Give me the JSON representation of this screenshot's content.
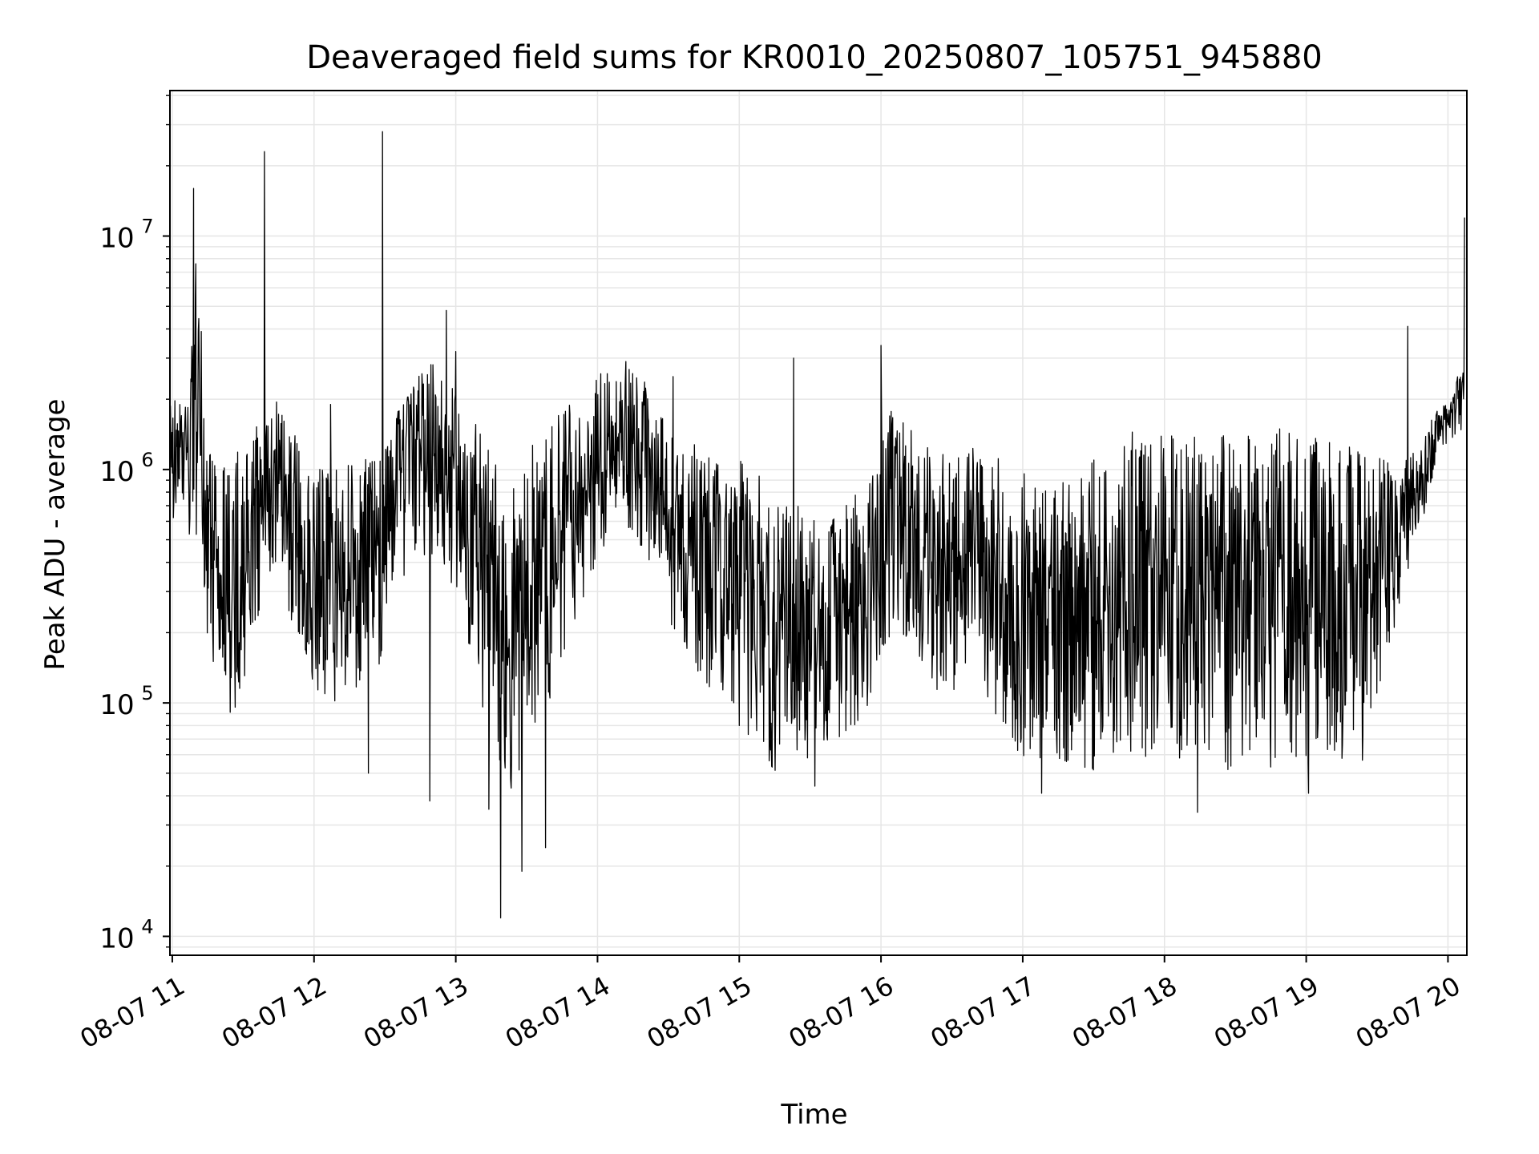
{
  "chart_data": {
    "type": "line",
    "title": "Deaveraged field sums for KR0010_20250807_105751_945880",
    "xlabel": "Time",
    "ylabel": "Peak ADU - average",
    "x_tick_labels": [
      "08-07 11",
      "08-07 12",
      "08-07 13",
      "08-07 14",
      "08-07 15",
      "08-07 16",
      "08-07 17",
      "08-07 18",
      "08-07 19",
      "08-07 20"
    ],
    "x_ticks": [
      "2025-08-07T11:00",
      "2025-08-07T12:00",
      "2025-08-07T13:00",
      "2025-08-07T14:00",
      "2025-08-07T15:00",
      "2025-08-07T16:00",
      "2025-08-07T17:00",
      "2025-08-07T18:00",
      "2025-08-07T19:00",
      "2025-08-07T20:00"
    ],
    "xlim": [
      "2025-08-07T10:59",
      "2025-08-07T20:08"
    ],
    "y_ticks": [
      {
        "base": "10",
        "exp": "4",
        "value": 10000
      },
      {
        "base": "10",
        "exp": "5",
        "value": 100000
      },
      {
        "base": "10",
        "exp": "6",
        "value": 1000000
      },
      {
        "base": "10",
        "exp": "7",
        "value": 10000000
      }
    ],
    "yscale": "log",
    "ylim": [
      8300,
      42000000
    ],
    "grid": true,
    "line_color": "#000000",
    "grid_color": "#e6e6e6",
    "series": [
      {
        "x": [
          "2025-08-07T10:59",
          "2025-08-07T11:02",
          "2025-08-07T11:06",
          "2025-08-07T11:08",
          "2025-08-07T11:10",
          "2025-08-07T11:14",
          "2025-08-07T11:20",
          "2025-08-07T11:26",
          "2025-08-07T11:33",
          "2025-08-07T11:39",
          "2025-08-07T11:40",
          "2025-08-07T11:45",
          "2025-08-07T11:52",
          "2025-08-07T12:00",
          "2025-08-07T12:10",
          "2025-08-07T12:20",
          "2025-08-07T12:29",
          "2025-08-07T12:30",
          "2025-08-07T12:36",
          "2025-08-07T12:43",
          "2025-08-07T12:50",
          "2025-08-07T12:55",
          "2025-08-07T13:00",
          "2025-08-07T13:08",
          "2025-08-07T13:15",
          "2025-08-07T13:19",
          "2025-08-07T13:25",
          "2025-08-07T13:30",
          "2025-08-07T13:40",
          "2025-08-07T13:50",
          "2025-08-07T14:00",
          "2025-08-07T14:08",
          "2025-08-07T14:17",
          "2025-08-07T14:25",
          "2025-08-07T14:35",
          "2025-08-07T14:45",
          "2025-08-07T14:55",
          "2025-08-07T15:05",
          "2025-08-07T15:15",
          "2025-08-07T15:25",
          "2025-08-07T15:35",
          "2025-08-07T15:45",
          "2025-08-07T15:55",
          "2025-08-07T16:05",
          "2025-08-07T16:15",
          "2025-08-07T16:25",
          "2025-08-07T16:35",
          "2025-08-07T16:45",
          "2025-08-07T16:55",
          "2025-08-07T17:05",
          "2025-08-07T17:15",
          "2025-08-07T17:25",
          "2025-08-07T17:35",
          "2025-08-07T17:45",
          "2025-08-07T17:55",
          "2025-08-07T18:05",
          "2025-08-07T18:15",
          "2025-08-07T18:25",
          "2025-08-07T18:35",
          "2025-08-07T18:45",
          "2025-08-07T18:55",
          "2025-08-07T19:05",
          "2025-08-07T19:15",
          "2025-08-07T19:25",
          "2025-08-07T19:35",
          "2025-08-07T19:43",
          "2025-08-07T19:50",
          "2025-08-07T19:55",
          "2025-08-07T20:00",
          "2025-08-07T20:04",
          "2025-08-07T20:07"
        ],
        "y": [
          1500000,
          1200000,
          1400000,
          1700000,
          8900000,
          1800000,
          500000,
          420000,
          480000,
          700000,
          900000,
          1100000,
          600000,
          450000,
          350000,
          420000,
          500000,
          550000,
          700000,
          800000,
          1000000,
          900000,
          750000,
          500000,
          300000,
          200000,
          150000,
          250000,
          350000,
          500000,
          900000,
          1100000,
          1000000,
          700000,
          450000,
          400000,
          350000,
          300000,
          200000,
          180000,
          150000,
          180000,
          300000,
          600000,
          400000,
          350000,
          500000,
          450000,
          300000,
          200000,
          180000,
          150000,
          140000,
          130000,
          150000,
          120000,
          100000,
          110000,
          120000,
          130000,
          140000,
          150000,
          160000,
          180000,
          400000,
          700000,
          900000,
          1300000,
          1500000,
          1800000,
          1700000
        ],
        "low": [
          550000,
          600000,
          500000,
          400000,
          450000,
          160000,
          120000,
          80000,
          150000,
          250000,
          300000,
          350000,
          200000,
          110000,
          90000,
          120000,
          150000,
          200000,
          300000,
          400000,
          400000,
          300000,
          250000,
          150000,
          60000,
          35000,
          40000,
          60000,
          100000,
          200000,
          400000,
          600000,
          500000,
          350000,
          150000,
          120000,
          100000,
          60000,
          50000,
          55000,
          60000,
          60000,
          100000,
          200000,
          150000,
          100000,
          120000,
          100000,
          60000,
          50000,
          50000,
          50000,
          50000,
          55000,
          55000,
          50000,
          50000,
          50000,
          50000,
          48000,
          50000,
          50000,
          50000,
          55000,
          150000,
          350000,
          600000,
          1100000,
          1300000,
          1400000,
          1300000
        ],
        "high": [
          2200000,
          2100000,
          2000000,
          3000000,
          9000000,
          2300000,
          1000000,
          1200000,
          1500000,
          1600000,
          1800000,
          2000000,
          1400000,
          1100000,
          1000000,
          1100000,
          1300000,
          1500000,
          1900000,
          2400000,
          3000000,
          2500000,
          2300000,
          1700000,
          1200000,
          1000000,
          900000,
          1200000,
          1600000,
          2200000,
          2600000,
          2800000,
          2700000,
          2000000,
          1400000,
          1300000,
          1200000,
          1100000,
          800000,
          700000,
          600000,
          700000,
          1000000,
          1900000,
          1400000,
          1200000,
          1300000,
          1200000,
          1100000,
          1000000,
          900000,
          1000000,
          1300000,
          1500000,
          1500000,
          1400000,
          1500000,
          1500000,
          1500000,
          1500000,
          1500000,
          1500000,
          1500000,
          1400000,
          1200000,
          1100000,
          1400000,
          1800000,
          2000000,
          2600000,
          2600000
        ]
      }
    ],
    "spikes": [
      {
        "x": "2025-08-07T11:09",
        "y": 16000000
      },
      {
        "x": "2025-08-07T11:39",
        "y": 23000000
      },
      {
        "x": "2025-08-07T12:29",
        "y": 28000000
      },
      {
        "x": "2025-08-07T12:56",
        "y": 4800000
      },
      {
        "x": "2025-08-07T13:19",
        "y": 12000
      },
      {
        "x": "2025-08-07T13:28",
        "y": 19000
      },
      {
        "x": "2025-08-07T13:38",
        "y": 24000
      },
      {
        "x": "2025-08-07T13:00",
        "y": 3200000
      },
      {
        "x": "2025-08-07T14:12",
        "y": 2900000
      },
      {
        "x": "2025-08-07T15:23",
        "y": 3000000
      },
      {
        "x": "2025-08-07T16:00",
        "y": 3400000
      },
      {
        "x": "2025-08-07T18:14",
        "y": 34000
      },
      {
        "x": "2025-08-07T19:43",
        "y": 4100000
      },
      {
        "x": "2025-08-07T20:07",
        "y": 12000000
      },
      {
        "x": "2025-08-07T12:07",
        "y": 1900000
      },
      {
        "x": "2025-08-07T12:49",
        "y": 38000
      },
      {
        "x": "2025-08-07T12:23",
        "y": 50000
      },
      {
        "x": "2025-08-07T13:14",
        "y": 35000
      },
      {
        "x": "2025-08-07T14:32",
        "y": 2500000
      },
      {
        "x": "2025-08-07T15:32",
        "y": 44000
      },
      {
        "x": "2025-08-07T17:08",
        "y": 41000
      },
      {
        "x": "2025-08-07T19:01",
        "y": 41000
      }
    ]
  }
}
